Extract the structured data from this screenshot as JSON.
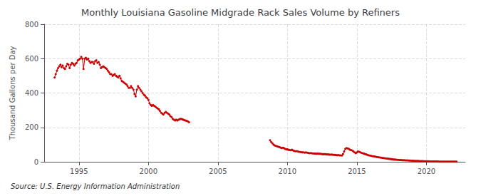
{
  "chart_data": {
    "type": "line",
    "title": "Monthly Louisiana Gasoline Midgrade Rack Sales Volume by Refiners",
    "ylabel": "Thousand Gallons per Day",
    "annotations": [
      "Source: U.S. Energy Information Administration"
    ],
    "color": "#cc0000",
    "marker": "circle",
    "grid": true,
    "xlim": [
      1992.5,
      2022.8
    ],
    "xticks": [
      1995,
      2000,
      2005,
      2010,
      2015,
      2020
    ],
    "ylim": [
      0,
      800
    ],
    "yticks": [
      0,
      200,
      400,
      600,
      800
    ],
    "x": [
      1993.25,
      1993.33,
      1993.42,
      1993.5,
      1993.58,
      1993.67,
      1993.75,
      1993.83,
      1993.92,
      1994.0,
      1994.08,
      1994.17,
      1994.25,
      1994.33,
      1994.42,
      1994.5,
      1994.58,
      1994.67,
      1994.75,
      1994.83,
      1994.92,
      1995.0,
      1995.08,
      1995.17,
      1995.25,
      1995.33,
      1995.42,
      1995.5,
      1995.58,
      1995.67,
      1995.75,
      1995.83,
      1995.92,
      1996.0,
      1996.08,
      1996.17,
      1996.25,
      1996.33,
      1996.42,
      1996.5,
      1996.58,
      1996.67,
      1996.75,
      1996.83,
      1996.92,
      1997.0,
      1997.08,
      1997.17,
      1997.25,
      1997.33,
      1997.42,
      1997.5,
      1997.58,
      1997.67,
      1997.75,
      1997.83,
      1997.92,
      1998.0,
      1998.08,
      1998.17,
      1998.25,
      1998.33,
      1998.42,
      1998.5,
      1998.58,
      1998.67,
      1998.75,
      1998.83,
      1998.92,
      1999.0,
      1999.08,
      1999.17,
      1999.25,
      1999.33,
      1999.42,
      1999.5,
      1999.58,
      1999.67,
      1999.75,
      1999.83,
      1999.92,
      2000.0,
      2000.08,
      2000.17,
      2000.25,
      2000.33,
      2000.42,
      2000.5,
      2000.58,
      2000.67,
      2000.75,
      2000.83,
      2000.92,
      2001.0,
      2001.08,
      2001.17,
      2001.25,
      2001.33,
      2001.42,
      2001.5,
      2001.58,
      2001.67,
      2001.75,
      2001.83,
      2001.92,
      2002.0,
      2002.08,
      2002.17,
      2002.25,
      2002.33,
      2002.42,
      2002.5,
      2002.58,
      2002.67,
      2002.75,
      2002.83,
      2002.92,
      null,
      2008.75,
      2008.83,
      2008.92,
      2009.0,
      2009.08,
      2009.17,
      2009.25,
      2009.33,
      2009.42,
      2009.5,
      2009.58,
      2009.67,
      2009.75,
      2009.83,
      2009.92,
      2010.0,
      2010.08,
      2010.17,
      2010.25,
      2010.33,
      2010.42,
      2010.5,
      2010.58,
      2010.67,
      2010.75,
      2010.83,
      2010.92,
      2011.0,
      2011.08,
      2011.17,
      2011.25,
      2011.33,
      2011.42,
      2011.5,
      2011.58,
      2011.67,
      2011.75,
      2011.83,
      2011.92,
      2012.0,
      2012.08,
      2012.17,
      2012.25,
      2012.33,
      2012.42,
      2012.5,
      2012.58,
      2012.67,
      2012.75,
      2012.83,
      2012.92,
      2013.0,
      2013.08,
      2013.17,
      2013.25,
      2013.33,
      2013.42,
      2013.5,
      2013.58,
      2013.67,
      2013.75,
      2013.83,
      2013.92,
      2014.0,
      2014.08,
      2014.17,
      2014.25,
      2014.33,
      2014.42,
      2014.5,
      2014.58,
      2014.67,
      2014.75,
      2014.83,
      2014.92,
      2015.0,
      2015.08,
      2015.17,
      2015.25,
      2015.33,
      2015.42,
      2015.5,
      2015.58,
      2015.67,
      2015.75,
      2015.83,
      2015.92,
      2016.0,
      2016.08,
      2016.17,
      2016.25,
      2016.33,
      2016.42,
      2016.5,
      2016.58,
      2016.67,
      2016.75,
      2016.83,
      2016.92,
      2017.0,
      2017.08,
      2017.17,
      2017.25,
      2017.33,
      2017.42,
      2017.5,
      2017.58,
      2017.67,
      2017.75,
      2017.83,
      2017.92,
      2018.0,
      2018.08,
      2018.17,
      2018.25,
      2018.33,
      2018.42,
      2018.5,
      2018.58,
      2018.67,
      2018.75,
      2018.83,
      2018.92,
      2019.0,
      2019.08,
      2019.17,
      2019.25,
      2019.33,
      2019.42,
      2019.5,
      2019.58,
      2019.67,
      2019.75,
      2019.83,
      2019.92,
      2020.0,
      2020.08,
      2020.17,
      2020.25,
      2020.33,
      2020.42,
      2020.5,
      2020.58,
      2020.67,
      2020.75,
      2020.83,
      2020.92,
      2021.0,
      2021.08,
      2021.17,
      2021.25,
      2021.33,
      2021.42,
      2021.5,
      2021.58,
      2021.67,
      2021.75,
      2021.83,
      2021.92,
      2022.0,
      2022.08,
      2022.17
    ],
    "values": [
      490,
      510,
      530,
      545,
      555,
      565,
      550,
      560,
      545,
      540,
      555,
      570,
      565,
      545,
      565,
      575,
      570,
      560,
      570,
      575,
      590,
      595,
      600,
      610,
      600,
      540,
      600,
      605,
      595,
      600,
      585,
      575,
      580,
      580,
      570,
      585,
      590,
      575,
      580,
      565,
      545,
      550,
      555,
      550,
      545,
      540,
      530,
      520,
      510,
      510,
      500,
      505,
      510,
      500,
      495,
      490,
      500,
      485,
      470,
      465,
      460,
      455,
      450,
      440,
      430,
      430,
      440,
      430,
      420,
      395,
      380,
      420,
      440,
      430,
      420,
      410,
      400,
      390,
      385,
      375,
      370,
      360,
      340,
      330,
      325,
      330,
      325,
      320,
      315,
      310,
      305,
      295,
      285,
      280,
      275,
      285,
      290,
      285,
      280,
      275,
      265,
      260,
      250,
      245,
      240,
      245,
      240,
      245,
      248,
      250,
      248,
      245,
      242,
      240,
      238,
      235,
      230,
      null,
      125,
      115,
      108,
      100,
      95,
      92,
      90,
      88,
      85,
      83,
      80,
      82,
      80,
      75,
      73,
      72,
      70,
      68,
      67,
      70,
      65,
      63,
      61,
      62,
      60,
      58,
      57,
      56,
      55,
      55,
      53,
      55,
      53,
      52,
      50,
      51,
      50,
      49,
      48,
      48,
      47,
      48,
      47,
      47,
      46,
      45,
      44,
      45,
      44,
      43,
      43,
      42,
      41,
      42,
      41,
      40,
      40,
      39,
      38,
      39,
      37,
      37,
      36,
      45,
      60,
      75,
      80,
      78,
      75,
      70,
      68,
      65,
      60,
      55,
      50,
      55,
      60,
      58,
      55,
      52,
      50,
      48,
      45,
      43,
      40,
      38,
      36,
      35,
      33,
      32,
      31,
      30,
      28,
      27,
      26,
      25,
      24,
      23,
      22,
      21,
      20,
      19,
      18,
      17,
      16,
      15,
      14,
      13,
      13,
      12,
      11,
      11,
      10,
      10,
      9,
      9,
      9,
      8,
      8,
      8,
      7,
      7,
      6,
      6,
      6,
      5,
      5,
      5,
      5,
      4,
      4,
      4,
      4,
      3,
      3,
      3,
      3,
      3,
      2,
      2,
      2,
      2,
      2,
      2,
      2,
      2,
      1,
      1,
      1,
      1,
      1,
      1,
      1,
      1,
      1,
      1,
      1,
      1,
      1,
      1,
      1,
      1
    ]
  }
}
